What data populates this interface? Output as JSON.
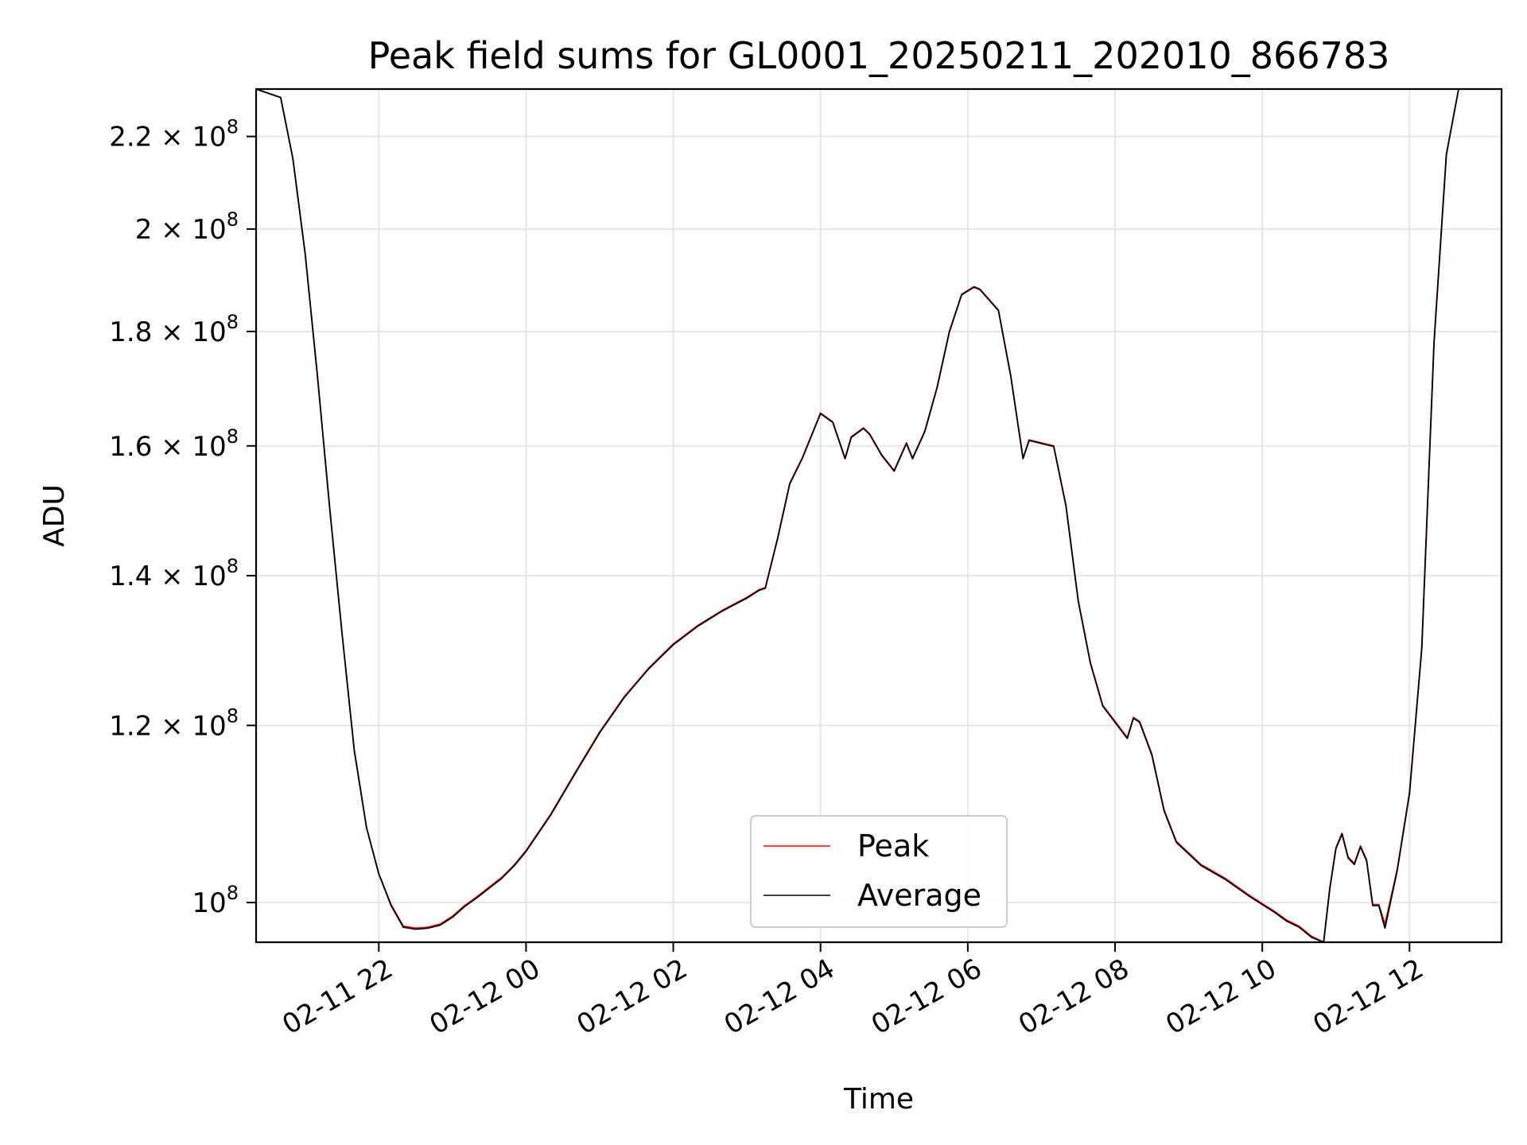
{
  "chart_data": {
    "type": "line",
    "title": "Peak field sums for GL0001_20250211_202010_866783",
    "xlabel": "Time",
    "ylabel": "ADU",
    "y_scale": "log",
    "grid": true,
    "legend_placement": "lower-center",
    "x_ticks": [
      "2025-02-11 22:00",
      "2025-02-12 00:00",
      "2025-02-12 02:00",
      "2025-02-12 04:00",
      "2025-02-12 06:00",
      "2025-02-12 08:00",
      "2025-02-12 10:00",
      "2025-02-12 12:00"
    ],
    "x_tick_labels": [
      "02-11 22",
      "02-12 00",
      "02-12 02",
      "02-12 04",
      "02-12 06",
      "02-12 08",
      "02-12 10",
      "02-12 12"
    ],
    "xlim": [
      "2025-02-11 20:20",
      "2025-02-12 13:15"
    ],
    "y_ticks": [
      100000000,
      120000000,
      140000000,
      160000000,
      180000000,
      200000000,
      220000000
    ],
    "y_tick_labels": [
      {
        "mantissa": "",
        "exponent": "8"
      },
      {
        "mantissa": "1.2",
        "exponent": "8"
      },
      {
        "mantissa": "1.4",
        "exponent": "8"
      },
      {
        "mantissa": "1.6",
        "exponent": "8"
      },
      {
        "mantissa": "1.8",
        "exponent": "8"
      },
      {
        "mantissa": "2",
        "exponent": "8"
      },
      {
        "mantissa": "2.2",
        "exponent": "8"
      }
    ],
    "ylim": [
      96000000,
      231000000
    ],
    "x": [
      "2025-02-11 20:20",
      "2025-02-11 20:40",
      "2025-02-11 20:50",
      "2025-02-11 21:00",
      "2025-02-11 21:10",
      "2025-02-11 21:20",
      "2025-02-11 21:30",
      "2025-02-11 21:40",
      "2025-02-11 21:50",
      "2025-02-11 22:00",
      "2025-02-11 22:10",
      "2025-02-11 22:20",
      "2025-02-11 22:30",
      "2025-02-11 22:40",
      "2025-02-11 22:50",
      "2025-02-11 23:00",
      "2025-02-11 23:10",
      "2025-02-11 23:20",
      "2025-02-11 23:30",
      "2025-02-11 23:40",
      "2025-02-11 23:50",
      "2025-02-12 00:00",
      "2025-02-12 00:20",
      "2025-02-12 00:40",
      "2025-02-12 01:00",
      "2025-02-12 01:20",
      "2025-02-12 01:40",
      "2025-02-12 02:00",
      "2025-02-12 02:20",
      "2025-02-12 02:40",
      "2025-02-12 03:00",
      "2025-02-12 03:10",
      "2025-02-12 03:15",
      "2025-02-12 03:25",
      "2025-02-12 03:35",
      "2025-02-12 03:45",
      "2025-02-12 04:00",
      "2025-02-12 04:10",
      "2025-02-12 04:20",
      "2025-02-12 04:25",
      "2025-02-12 04:35",
      "2025-02-12 04:40",
      "2025-02-12 04:50",
      "2025-02-12 05:00",
      "2025-02-12 05:10",
      "2025-02-12 05:15",
      "2025-02-12 05:25",
      "2025-02-12 05:35",
      "2025-02-12 05:45",
      "2025-02-12 05:55",
      "2025-02-12 06:05",
      "2025-02-12 06:10",
      "2025-02-12 06:25",
      "2025-02-12 06:35",
      "2025-02-12 06:45",
      "2025-02-12 06:50",
      "2025-02-12 07:00",
      "2025-02-12 07:10",
      "2025-02-12 07:20",
      "2025-02-12 07:30",
      "2025-02-12 07:40",
      "2025-02-12 07:50",
      "2025-02-12 08:00",
      "2025-02-12 08:10",
      "2025-02-12 08:15",
      "2025-02-12 08:20",
      "2025-02-12 08:30",
      "2025-02-12 08:40",
      "2025-02-12 08:50",
      "2025-02-12 09:10",
      "2025-02-12 09:30",
      "2025-02-12 09:50",
      "2025-02-12 10:10",
      "2025-02-12 10:20",
      "2025-02-12 10:30",
      "2025-02-12 10:40",
      "2025-02-12 10:50",
      "2025-02-12 10:55",
      "2025-02-12 11:00",
      "2025-02-12 11:05",
      "2025-02-12 11:10",
      "2025-02-12 11:15",
      "2025-02-12 11:20",
      "2025-02-12 11:25",
      "2025-02-12 11:30",
      "2025-02-12 11:35",
      "2025-02-12 11:40",
      "2025-02-12 11:50",
      "2025-02-12 12:00",
      "2025-02-12 12:10",
      "2025-02-12 12:20",
      "2025-02-12 12:30",
      "2025-02-12 12:40"
    ],
    "series": [
      {
        "name": "Peak",
        "color": "#ff0000",
        "values": [
          231000000,
          229000000,
          215000000,
          195000000,
          172000000,
          150000000,
          132000000,
          117000000,
          108000000,
          103000000,
          99800000,
          97600000,
          97400000,
          97500000,
          97800000,
          98600000,
          99700000,
          100600000,
          101600000,
          102600000,
          103900000,
          105500000,
          109500000,
          114300000,
          119200000,
          123600000,
          127300000,
          130500000,
          133000000,
          135100000,
          136900000,
          138000000,
          138300000,
          145500000,
          154000000,
          158000000,
          165500000,
          164000000,
          158000000,
          161500000,
          163000000,
          162000000,
          158500000,
          156000000,
          160500000,
          158000000,
          162500000,
          170000000,
          180000000,
          187000000,
          188500000,
          188000000,
          184000000,
          172000000,
          158000000,
          161000000,
          160500000,
          160000000,
          150500000,
          136500000,
          128000000,
          122500000,
          120500000,
          118500000,
          121000000,
          120500000,
          116500000,
          110000000,
          106500000,
          104000000,
          102500000,
          100700000,
          99100000,
          98200000,
          97600000,
          96600000,
          96000000,
          101500000,
          105800000,
          107400000,
          104800000,
          104100000,
          106000000,
          104500000,
          99800000,
          99800000,
          97800000,
          103500000,
          112000000,
          130000000,
          178000000,
          216000000,
          231000000
        ]
      },
      {
        "name": "Average",
        "color": "#000000",
        "values": [
          231000000,
          229000000,
          215000000,
          195000000,
          172000000,
          150000000,
          132000000,
          117000000,
          108000000,
          103000000,
          99700000,
          97500000,
          97300000,
          97400000,
          97700000,
          98500000,
          99600000,
          100500000,
          101500000,
          102500000,
          103800000,
          105400000,
          109400000,
          114200000,
          119100000,
          123500000,
          127200000,
          130400000,
          132900000,
          135000000,
          136800000,
          137900000,
          138200000,
          145400000,
          153900000,
          157900000,
          165400000,
          163900000,
          157900000,
          161400000,
          162900000,
          161900000,
          158400000,
          155900000,
          160400000,
          157900000,
          162400000,
          169900000,
          179900000,
          186900000,
          188400000,
          187900000,
          183900000,
          171900000,
          157900000,
          160900000,
          160400000,
          159900000,
          150400000,
          136400000,
          127900000,
          122400000,
          120400000,
          118400000,
          120900000,
          120400000,
          116400000,
          109900000,
          106400000,
          103900000,
          102400000,
          100600000,
          99000000,
          98100000,
          97500000,
          96500000,
          96000000,
          101400000,
          105700000,
          107300000,
          104700000,
          104000000,
          105900000,
          104400000,
          99700000,
          99700000,
          97400000,
          103400000,
          111900000,
          129900000,
          177900000,
          215900000,
          231000000
        ]
      }
    ]
  }
}
